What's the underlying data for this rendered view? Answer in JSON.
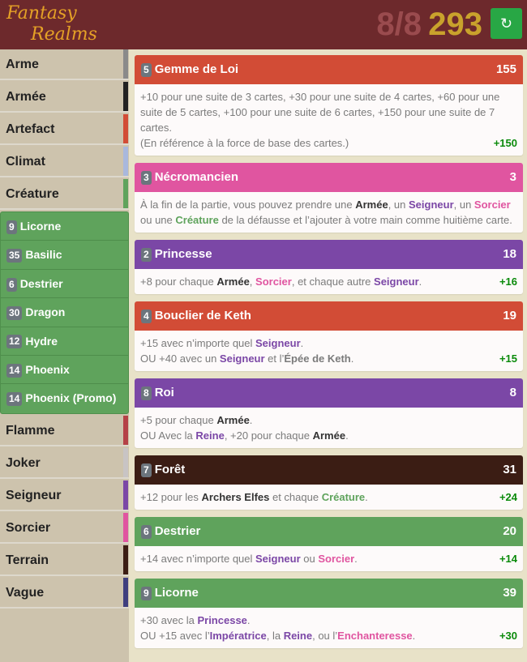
{
  "header": {
    "logo_line1": "Fantasy",
    "logo_line2": "Realms",
    "count": "8/8",
    "score": "293",
    "refresh_icon": "↻"
  },
  "colors": {
    "header": "#6d292c",
    "accent_green": "#28a745",
    "bonus": "#0a8a0a"
  },
  "sidebar": {
    "items": [
      {
        "label": "Arme",
        "color": "#8a8a8a"
      },
      {
        "label": "Armée",
        "color": "#222222"
      },
      {
        "label": "Artefact",
        "color": "#d24c36"
      },
      {
        "label": "Climat",
        "color": "#a9b8dd"
      },
      {
        "label": "Créature",
        "color": "#5fa35c",
        "expanded": true,
        "children": [
          {
            "badge": "9",
            "label": "Licorne"
          },
          {
            "badge": "35",
            "label": "Basilic"
          },
          {
            "badge": "6",
            "label": "Destrier"
          },
          {
            "badge": "30",
            "label": "Dragon"
          },
          {
            "badge": "12",
            "label": "Hydre"
          },
          {
            "badge": "14",
            "label": "Phoenix"
          },
          {
            "badge": "14",
            "label": "Phoenix (Promo)"
          }
        ]
      },
      {
        "label": "Flamme",
        "color": "#b54147"
      },
      {
        "label": "Joker",
        "color": "#c8c4c4"
      },
      {
        "label": "Seigneur",
        "color": "#7b47a6"
      },
      {
        "label": "Sorcier",
        "color": "#e055a0"
      },
      {
        "label": "Terrain",
        "color": "#3b1d14"
      },
      {
        "label": "Vague",
        "color": "#3f3f7e"
      }
    ]
  },
  "cards": [
    {
      "badge": "5",
      "name": "Gemme de Loi",
      "value": "155",
      "color": "#d24c36",
      "bonus": "+150",
      "lines": [
        [
          {
            "t": "+10 pour une suite de 3 cartes, +30 pour une suite de 4 cartes, +60 pour une suite de 5 cartes, +100 pour une suite de 6 cartes, +150 pour une suite de 7 cartes.",
            "c": ""
          }
        ],
        [
          {
            "t": "(En référence à la force de base des cartes.)",
            "c": ""
          }
        ]
      ]
    },
    {
      "badge": "3",
      "name": "Nécromancien",
      "value": "3",
      "color": "#e055a0",
      "bonus": "",
      "lines": [
        [
          {
            "t": "À la fin de la partie, vous pouvez prendre une ",
            "c": ""
          },
          {
            "t": "Armée",
            "c": "armee"
          },
          {
            "t": ", un ",
            "c": ""
          },
          {
            "t": "Seigneur",
            "c": "seigneur"
          },
          {
            "t": ", un ",
            "c": ""
          },
          {
            "t": "Sorcier",
            "c": "sorcier"
          },
          {
            "t": " ou une ",
            "c": ""
          },
          {
            "t": "Créature",
            "c": "creature"
          },
          {
            "t": " de la défausse et l’ajouter à votre main comme huitième carte.",
            "c": ""
          }
        ]
      ]
    },
    {
      "badge": "2",
      "name": "Princesse",
      "value": "18",
      "color": "#7b47a6",
      "bonus": "+16",
      "lines": [
        [
          {
            "t": "+8 pour chaque ",
            "c": ""
          },
          {
            "t": "Armée",
            "c": "armee"
          },
          {
            "t": ", ",
            "c": ""
          },
          {
            "t": "Sorcier",
            "c": "sorcier"
          },
          {
            "t": ", et chaque autre ",
            "c": ""
          },
          {
            "t": "Seigneur",
            "c": "seigneur"
          },
          {
            "t": ".",
            "c": ""
          }
        ]
      ]
    },
    {
      "badge": "4",
      "name": "Bouclier de Keth",
      "value": "19",
      "color": "#d24c36",
      "bonus": "+15",
      "lines": [
        [
          {
            "t": "+15 avec n’importe quel ",
            "c": ""
          },
          {
            "t": "Seigneur",
            "c": "seigneur"
          },
          {
            "t": ".",
            "c": ""
          }
        ],
        [
          {
            "t": "OU +40 avec un ",
            "c": ""
          },
          {
            "t": "Seigneur",
            "c": "seigneur"
          },
          {
            "t": " et l’",
            "c": ""
          },
          {
            "t": "Épée de Keth",
            "c": "arme"
          },
          {
            "t": ".",
            "c": ""
          }
        ]
      ]
    },
    {
      "badge": "8",
      "name": "Roi",
      "value": "8",
      "color": "#7b47a6",
      "bonus": "",
      "lines": [
        [
          {
            "t": "+5 pour chaque ",
            "c": ""
          },
          {
            "t": "Armée",
            "c": "armee"
          },
          {
            "t": ".",
            "c": ""
          }
        ],
        [
          {
            "t": "OU Avec la ",
            "c": ""
          },
          {
            "t": "Reine",
            "c": "seigneur"
          },
          {
            "t": ", +20 pour chaque ",
            "c": ""
          },
          {
            "t": "Armée",
            "c": "armee"
          },
          {
            "t": ".",
            "c": ""
          }
        ]
      ]
    },
    {
      "badge": "7",
      "name": "Forêt",
      "value": "31",
      "color": "#3b1d14",
      "bonus": "+24",
      "lines": [
        [
          {
            "t": "+12 pour les ",
            "c": ""
          },
          {
            "t": "Archers Elfes",
            "c": "armee"
          },
          {
            "t": " et chaque ",
            "c": ""
          },
          {
            "t": "Créature",
            "c": "creature"
          },
          {
            "t": ".",
            "c": ""
          }
        ]
      ]
    },
    {
      "badge": "6",
      "name": "Destrier",
      "value": "20",
      "color": "#5fa35c",
      "bonus": "+14",
      "lines": [
        [
          {
            "t": "+14 avec n’importe quel ",
            "c": ""
          },
          {
            "t": "Seigneur",
            "c": "seigneur"
          },
          {
            "t": " ou ",
            "c": ""
          },
          {
            "t": "Sorcier",
            "c": "sorcier"
          },
          {
            "t": ".",
            "c": ""
          }
        ]
      ]
    },
    {
      "badge": "9",
      "name": "Licorne",
      "value": "39",
      "color": "#5fa35c",
      "bonus": "+30",
      "lines": [
        [
          {
            "t": "+30 avec la ",
            "c": ""
          },
          {
            "t": "Princesse",
            "c": "seigneur"
          },
          {
            "t": ".",
            "c": ""
          }
        ],
        [
          {
            "t": "OU +15 avec l’",
            "c": ""
          },
          {
            "t": "Impératrice",
            "c": "seigneur"
          },
          {
            "t": ", la ",
            "c": ""
          },
          {
            "t": "Reine",
            "c": "seigneur"
          },
          {
            "t": ", ou l’",
            "c": ""
          },
          {
            "t": "Enchanteresse",
            "c": "sorcier"
          },
          {
            "t": ".",
            "c": ""
          }
        ]
      ]
    }
  ]
}
